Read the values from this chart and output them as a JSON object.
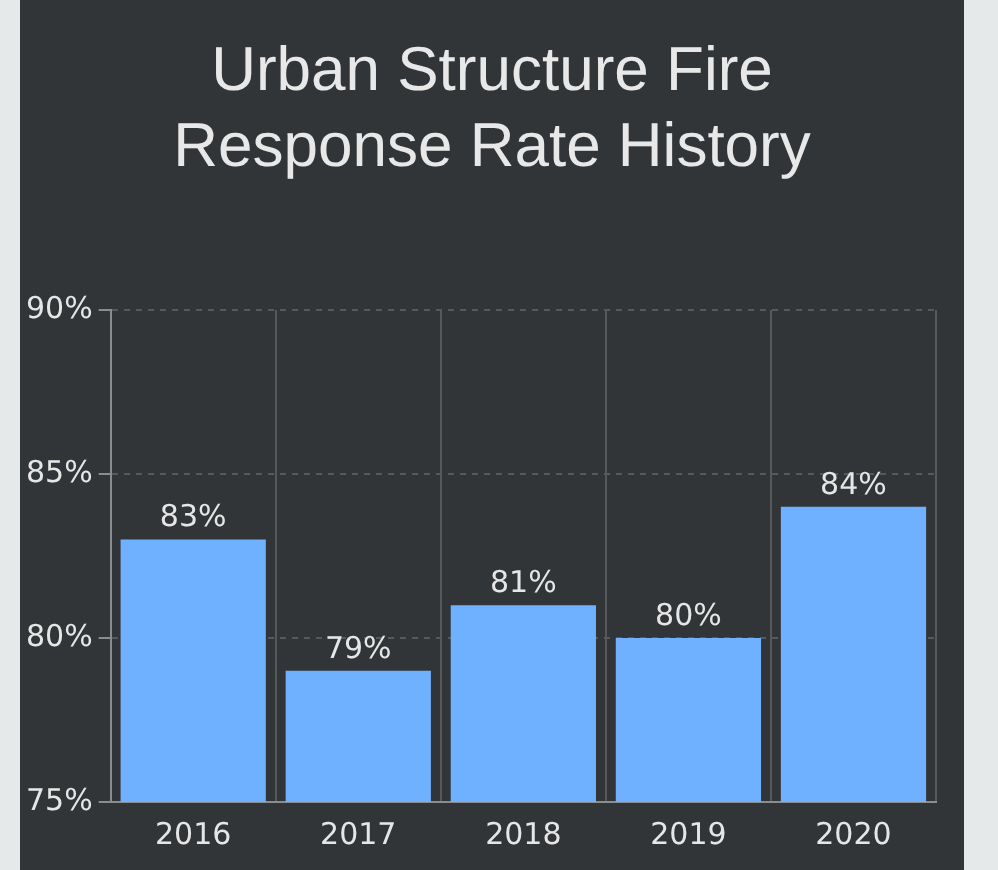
{
  "chart_data": {
    "type": "bar",
    "title": "Urban Structure Fire Response Rate History",
    "categories": [
      "2016",
      "2017",
      "2018",
      "2019",
      "2020"
    ],
    "values": [
      83,
      79,
      81,
      80,
      84
    ],
    "value_labels": [
      "83%",
      "79%",
      "81%",
      "80%",
      "84%"
    ],
    "color": "#70b1ff",
    "ylim": [
      75,
      90
    ],
    "yticks": [
      {
        "value": 75,
        "label": "75%"
      },
      {
        "value": 80,
        "label": "80%"
      },
      {
        "value": 85,
        "label": "85%"
      },
      {
        "value": 90,
        "label": "90%"
      }
    ],
    "grid": true,
    "legend": false
  }
}
